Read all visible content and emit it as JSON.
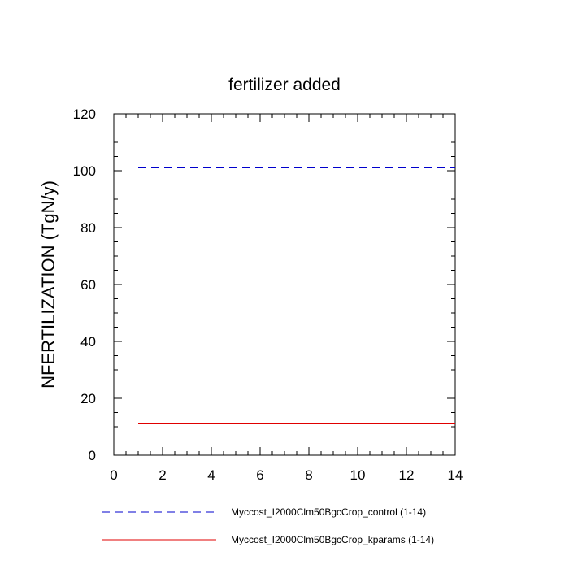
{
  "chart_data": {
    "type": "line",
    "title": "fertilizer added",
    "xlabel": "",
    "ylabel": "NFERTILIZATION  (TgN/y)",
    "xlim": [
      0,
      14
    ],
    "ylim": [
      0,
      120
    ],
    "x_ticks": [
      0,
      2,
      4,
      6,
      8,
      10,
      12,
      14
    ],
    "y_ticks": [
      0,
      20,
      40,
      60,
      80,
      100,
      120
    ],
    "grid": false,
    "legend_placement": "bottom",
    "series": [
      {
        "name": "Myccost_I2000Clm50BgcCrop_control (1-14)",
        "color": "#0000cc",
        "style": "dashed",
        "x": [
          1,
          2,
          3,
          4,
          5,
          6,
          7,
          8,
          9,
          10,
          11,
          12,
          13,
          14
        ],
        "y": [
          101,
          101,
          101,
          101,
          101,
          101,
          101,
          101,
          101,
          101,
          101,
          101,
          101,
          101
        ]
      },
      {
        "name": "Myccost_I2000Clm50BgcCrop_kparams (1-14)",
        "color": "#e00000",
        "style": "solid",
        "x": [
          1,
          2,
          3,
          4,
          5,
          6,
          7,
          8,
          9,
          10,
          11,
          12,
          13,
          14
        ],
        "y": [
          11,
          11,
          11,
          11,
          11,
          11,
          11,
          11,
          11,
          11,
          11,
          11,
          11,
          11
        ]
      }
    ]
  }
}
